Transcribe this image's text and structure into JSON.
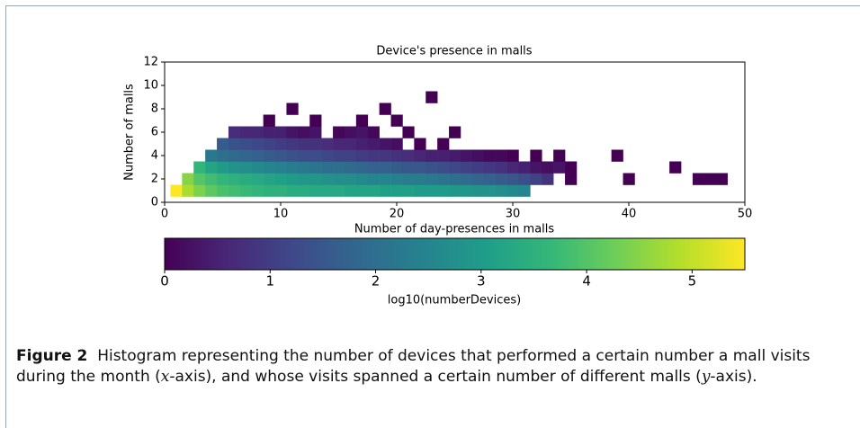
{
  "chart_data": {
    "type": "heatmap",
    "title": "Device's presence in malls",
    "xlabel": "Number of day-presences in malls",
    "ylabel": "Number of malls",
    "xlim": [
      0,
      50
    ],
    "xticks": [
      0,
      10,
      20,
      30,
      40,
      50
    ],
    "ylim": [
      0,
      12
    ],
    "yticks": [
      0,
      2,
      4,
      6,
      8,
      10,
      12
    ],
    "colormap": [
      "#440154",
      "#482878",
      "#3e4989",
      "#31688e",
      "#26828e",
      "#1f9e89",
      "#35b779",
      "#6ece58",
      "#b5de2b",
      "#fde725"
    ],
    "clim": [
      0,
      5.5
    ],
    "cticks": [
      0,
      1,
      2,
      3,
      4,
      5
    ],
    "colorbar_label": "log10(numberDevices)",
    "cells": [
      [
        1,
        1,
        5.5
      ],
      [
        2,
        1,
        4.8
      ],
      [
        3,
        1,
        4.4
      ],
      [
        4,
        1,
        4.1
      ],
      [
        5,
        1,
        3.9
      ],
      [
        6,
        1,
        3.8
      ],
      [
        7,
        1,
        3.7
      ],
      [
        8,
        1,
        3.6
      ],
      [
        9,
        1,
        3.5
      ],
      [
        10,
        1,
        3.5
      ],
      [
        11,
        1,
        3.4
      ],
      [
        12,
        1,
        3.4
      ],
      [
        13,
        1,
        3.3
      ],
      [
        14,
        1,
        3.3
      ],
      [
        15,
        1,
        3.3
      ],
      [
        16,
        1,
        3.2
      ],
      [
        17,
        1,
        3.2
      ],
      [
        18,
        1,
        3.2
      ],
      [
        19,
        1,
        3.1
      ],
      [
        20,
        1,
        3.1
      ],
      [
        21,
        1,
        3.1
      ],
      [
        22,
        1,
        3.0
      ],
      [
        23,
        1,
        3.0
      ],
      [
        24,
        1,
        3.0
      ],
      [
        25,
        1,
        2.9
      ],
      [
        26,
        1,
        2.9
      ],
      [
        27,
        1,
        2.8
      ],
      [
        28,
        1,
        2.8
      ],
      [
        29,
        1,
        2.7
      ],
      [
        30,
        1,
        2.6
      ],
      [
        31,
        1,
        2.5
      ],
      [
        2,
        2,
        4.5
      ],
      [
        3,
        2,
        4.0
      ],
      [
        4,
        2,
        3.8
      ],
      [
        5,
        2,
        3.6
      ],
      [
        6,
        2,
        3.5
      ],
      [
        7,
        2,
        3.4
      ],
      [
        8,
        2,
        3.3
      ],
      [
        9,
        2,
        3.2
      ],
      [
        10,
        2,
        3.1
      ],
      [
        11,
        2,
        3.0
      ],
      [
        12,
        2,
        2.9
      ],
      [
        13,
        2,
        2.9
      ],
      [
        14,
        2,
        2.8
      ],
      [
        15,
        2,
        2.7
      ],
      [
        16,
        2,
        2.7
      ],
      [
        17,
        2,
        2.6
      ],
      [
        18,
        2,
        2.5
      ],
      [
        19,
        2,
        2.5
      ],
      [
        20,
        2,
        2.4
      ],
      [
        21,
        2,
        2.3
      ],
      [
        22,
        2,
        2.3
      ],
      [
        23,
        2,
        2.2
      ],
      [
        24,
        2,
        2.1
      ],
      [
        25,
        2,
        2.0
      ],
      [
        26,
        2,
        1.9
      ],
      [
        27,
        2,
        1.8
      ],
      [
        28,
        2,
        1.7
      ],
      [
        29,
        2,
        1.6
      ],
      [
        30,
        2,
        1.5
      ],
      [
        31,
        2,
        1.3
      ],
      [
        32,
        2,
        1.1
      ],
      [
        33,
        2,
        0.8
      ],
      [
        35,
        2,
        0
      ],
      [
        40,
        2,
        0
      ],
      [
        46,
        2,
        0
      ],
      [
        47,
        2,
        0
      ],
      [
        48,
        2,
        0
      ],
      [
        3,
        3,
        3.6
      ],
      [
        4,
        3,
        3.2
      ],
      [
        5,
        3,
        3.0
      ],
      [
        6,
        3,
        2.8
      ],
      [
        7,
        3,
        2.7
      ],
      [
        8,
        3,
        2.6
      ],
      [
        9,
        3,
        2.5
      ],
      [
        10,
        3,
        2.4
      ],
      [
        11,
        3,
        2.3
      ],
      [
        12,
        3,
        2.2
      ],
      [
        13,
        3,
        2.1
      ],
      [
        14,
        3,
        2.0
      ],
      [
        15,
        3,
        2.0
      ],
      [
        16,
        3,
        1.9
      ],
      [
        17,
        3,
        1.8
      ],
      [
        18,
        3,
        1.7
      ],
      [
        19,
        3,
        1.7
      ],
      [
        20,
        3,
        1.6
      ],
      [
        21,
        3,
        1.5
      ],
      [
        22,
        3,
        1.5
      ],
      [
        23,
        3,
        1.4
      ],
      [
        24,
        3,
        1.3
      ],
      [
        25,
        3,
        1.2
      ],
      [
        26,
        3,
        1.1
      ],
      [
        27,
        3,
        1.0
      ],
      [
        28,
        3,
        0.9
      ],
      [
        29,
        3,
        0.8
      ],
      [
        30,
        3,
        0.6
      ],
      [
        31,
        3,
        0.5
      ],
      [
        32,
        3,
        0.3
      ],
      [
        33,
        3,
        0.2
      ],
      [
        34,
        3,
        0.3
      ],
      [
        35,
        3,
        0
      ],
      [
        44,
        3,
        0
      ],
      [
        4,
        4,
        2.2
      ],
      [
        5,
        4,
        2.0
      ],
      [
        6,
        4,
        1.9
      ],
      [
        7,
        4,
        1.8
      ],
      [
        8,
        4,
        1.7
      ],
      [
        9,
        4,
        1.6
      ],
      [
        10,
        4,
        1.5
      ],
      [
        11,
        4,
        1.4
      ],
      [
        12,
        4,
        1.3
      ],
      [
        13,
        4,
        1.3
      ],
      [
        14,
        4,
        1.2
      ],
      [
        15,
        4,
        1.1
      ],
      [
        16,
        4,
        1.1
      ],
      [
        17,
        4,
        1.0
      ],
      [
        18,
        4,
        0.9
      ],
      [
        19,
        4,
        0.9
      ],
      [
        20,
        4,
        0.8
      ],
      [
        21,
        4,
        0.7
      ],
      [
        22,
        4,
        0.6
      ],
      [
        23,
        4,
        0.5
      ],
      [
        24,
        4,
        0.5
      ],
      [
        25,
        4,
        0.4
      ],
      [
        26,
        4,
        0.3
      ],
      [
        27,
        4,
        0.2
      ],
      [
        28,
        4,
        0.1
      ],
      [
        29,
        4,
        0.1
      ],
      [
        30,
        4,
        0
      ],
      [
        32,
        4,
        0
      ],
      [
        34,
        4,
        0
      ],
      [
        39,
        4,
        0
      ],
      [
        5,
        5,
        1.6
      ],
      [
        6,
        5,
        1.4
      ],
      [
        7,
        5,
        1.3
      ],
      [
        8,
        5,
        1.2
      ],
      [
        9,
        5,
        1.1
      ],
      [
        10,
        5,
        1.0
      ],
      [
        11,
        5,
        0.9
      ],
      [
        12,
        5,
        0.8
      ],
      [
        13,
        5,
        0.8
      ],
      [
        14,
        5,
        0.7
      ],
      [
        15,
        5,
        0.6
      ],
      [
        16,
        5,
        0.6
      ],
      [
        17,
        5,
        0.5
      ],
      [
        18,
        5,
        0.4
      ],
      [
        19,
        5,
        0.3
      ],
      [
        20,
        5,
        0.2
      ],
      [
        22,
        5,
        0
      ],
      [
        24,
        5,
        0
      ],
      [
        6,
        6,
        0.7
      ],
      [
        7,
        6,
        0.6
      ],
      [
        8,
        6,
        0.6
      ],
      [
        9,
        6,
        0.5
      ],
      [
        10,
        6,
        0.5
      ],
      [
        11,
        6,
        0.3
      ],
      [
        12,
        6,
        0.2
      ],
      [
        13,
        6,
        0.3
      ],
      [
        15,
        6,
        0.1
      ],
      [
        16,
        6,
        0.2
      ],
      [
        17,
        6,
        0.3
      ],
      [
        18,
        6,
        0.1
      ],
      [
        21,
        6,
        0
      ],
      [
        25,
        6,
        0
      ],
      [
        9,
        7,
        0
      ],
      [
        13,
        7,
        0
      ],
      [
        17,
        7,
        0
      ],
      [
        20,
        7,
        0
      ],
      [
        11,
        8,
        0
      ],
      [
        19,
        8,
        0
      ],
      [
        23,
        9,
        0
      ]
    ]
  },
  "caption": {
    "label": "Figure 2",
    "text1": "Histogram representing the number of devices that performed a certain number a mall visits during the month (",
    "var1": "x",
    "text2": "-axis), and whose visits spanned a certain number of different malls (",
    "var2": "y",
    "text3": "-axis)."
  }
}
